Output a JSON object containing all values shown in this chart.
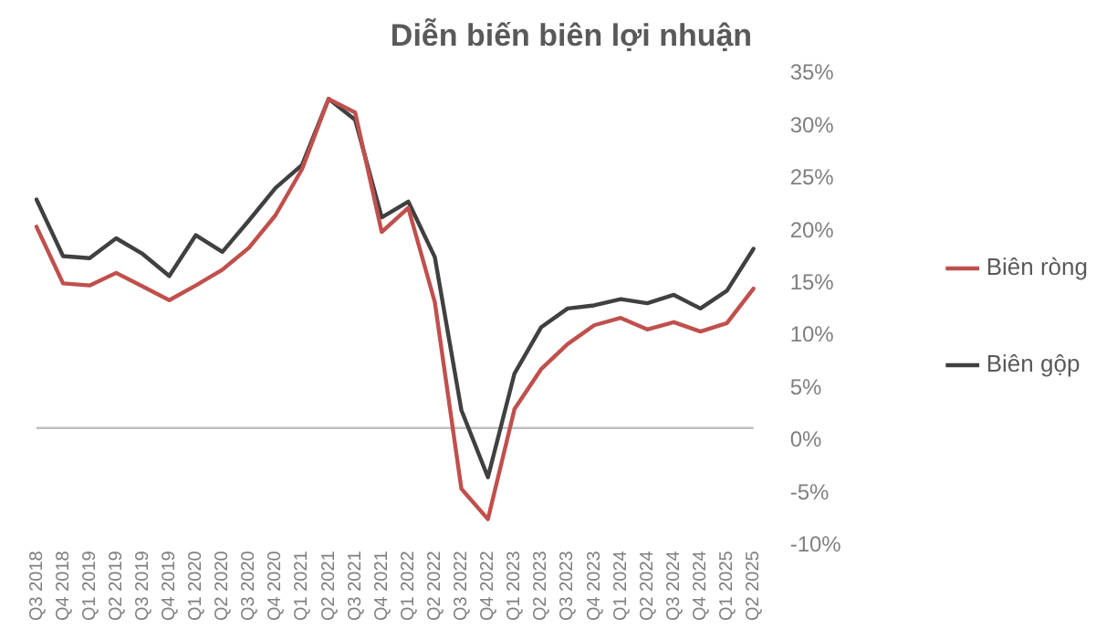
{
  "chart_data": {
    "type": "line",
    "title": "Diễn biến biên lợi nhuận",
    "categories": [
      "Q3 2018",
      "Q4 2018",
      "Q1 2019",
      "Q2 2019",
      "Q3 2019",
      "Q4 2019",
      "Q1 2020",
      "Q2 2020",
      "Q3 2020",
      "Q4 2020",
      "Q1 2021",
      "Q2 2021",
      "Q3 2021",
      "Q4 2021",
      "Q1 2022",
      "Q2 2022",
      "Q3 2022",
      "Q4 2022",
      "Q1 2023",
      "Q2 2023",
      "Q3 2023",
      "Q4 2023",
      "Q1 2024",
      "Q2 2024",
      "Q3 2024",
      "Q4 2024",
      "Q1 2025",
      "Q2 2025"
    ],
    "series": [
      {
        "name": "Biên ròng",
        "color": "#c0504d",
        "values": [
          20.4,
          15.0,
          14.8,
          16.0,
          14.7,
          13.4,
          14.8,
          16.3,
          18.4,
          21.5,
          25.9,
          32.6,
          31.3,
          19.9,
          22.2,
          13.2,
          -4.6,
          -7.5,
          3.0,
          6.8,
          9.2,
          11.0,
          11.7,
          10.6,
          11.3,
          10.4,
          11.2,
          14.5
        ]
      },
      {
        "name": "Biên gộp",
        "color": "#404040",
        "values": [
          23.0,
          17.6,
          17.4,
          19.3,
          17.8,
          15.7,
          19.6,
          18.0,
          21.0,
          24.1,
          26.3,
          32.6,
          30.6,
          21.3,
          22.8,
          17.5,
          2.9,
          -3.5,
          6.4,
          10.8,
          12.6,
          12.9,
          13.5,
          13.1,
          13.9,
          12.6,
          14.3,
          18.3
        ]
      }
    ],
    "ylim": [
      -10,
      35
    ],
    "yticks": [
      {
        "value": 35,
        "label": "35%"
      },
      {
        "value": 30,
        "label": "30%"
      },
      {
        "value": 25,
        "label": "25%"
      },
      {
        "value": 20,
        "label": "20%"
      },
      {
        "value": 15,
        "label": "15%"
      },
      {
        "value": 10,
        "label": "10%"
      },
      {
        "value": 5,
        "label": "5%"
      },
      {
        "value": 0,
        "label": "0%"
      },
      {
        "value": -5,
        "label": "-5%"
      },
      {
        "value": -10,
        "label": "-10%"
      }
    ],
    "ref_lines": [
      {
        "axis": "y",
        "value": 1.2,
        "color": "#bfbfbf"
      }
    ],
    "grid": false,
    "legend": "right",
    "marker": "none",
    "line_style": "solid"
  }
}
